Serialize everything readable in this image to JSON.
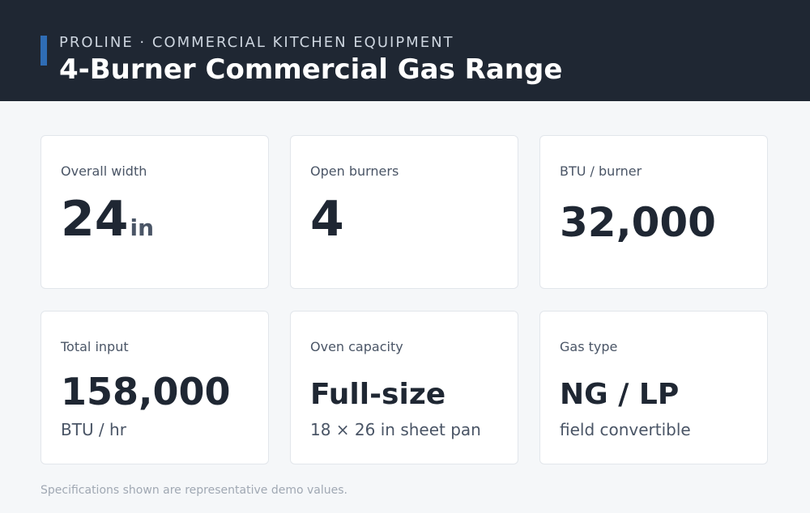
{
  "header": {
    "eyebrow": "PROLINE · COMMERCIAL KITCHEN EQUIPMENT",
    "title": "4-Burner Commercial Gas Range"
  },
  "cards": [
    {
      "label": "Overall width",
      "value": "24",
      "unit": "in"
    },
    {
      "label": "Open burners",
      "value": "4"
    },
    {
      "label": "BTU / burner",
      "value": "32,000"
    },
    {
      "label": "Total input",
      "value": "158,000",
      "sub": "BTU / hr"
    },
    {
      "label": "Oven capacity",
      "value": "Full-size",
      "sub": "18 × 26 in sheet pan"
    },
    {
      "label": "Gas type",
      "value": "NG / LP",
      "sub": "field convertible"
    }
  ],
  "footer": {
    "note": "Specifications shown are representative demo values."
  }
}
